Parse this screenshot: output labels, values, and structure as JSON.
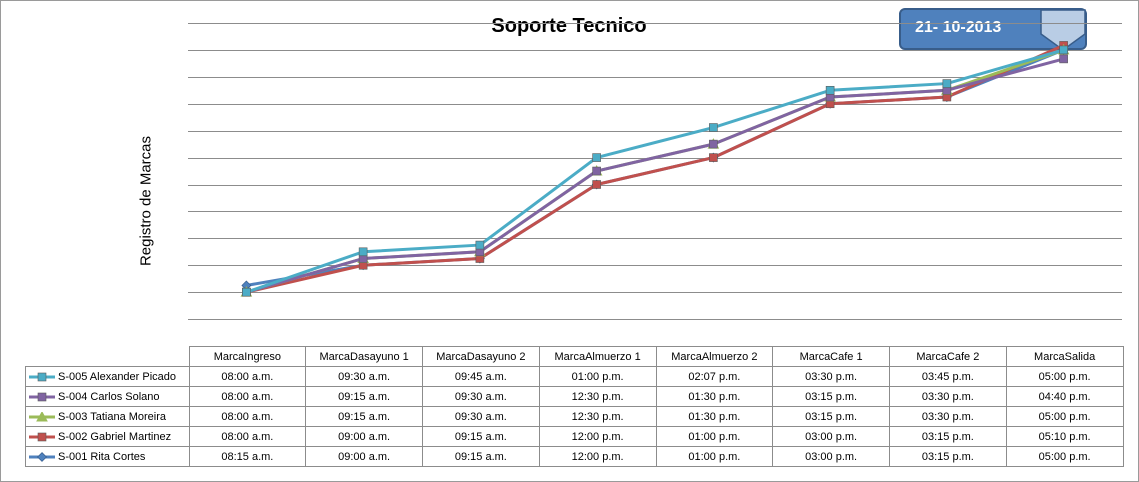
{
  "date_label": "21- 10-2013",
  "chart_data": {
    "type": "line",
    "title": "Soporte Tecnico",
    "ylabel": "Registro de Marcas",
    "xlabel": "",
    "ylim": [
      "06:00",
      "18:00"
    ],
    "grid": true,
    "legend": "data-table",
    "categories": [
      "MarcaIngreso",
      "MarcaDasayuno 1",
      "MarcaDasayuno 2",
      "MarcaAlmuerzo 1",
      "MarcaAlmuerzo 2",
      "MarcaCafe 1",
      "MarcaCafe 2",
      "MarcaSalida"
    ],
    "series": [
      {
        "name": "S-005 Alexander Picado",
        "color": "#4bacc6",
        "marker": "square",
        "values": [
          "08:00 a.m.",
          "09:30 a.m.",
          "09:45 a.m.",
          "01:00 p.m.",
          "02:07 p.m.",
          "03:30 p.m.",
          "03:45 p.m.",
          "05:00 p.m."
        ]
      },
      {
        "name": "S-004 Carlos Solano",
        "color": "#8064a2",
        "marker": "square",
        "values": [
          "08:00 a.m.",
          "09:15 a.m.",
          "09:30 a.m.",
          "12:30 p.m.",
          "01:30 p.m.",
          "03:15 p.m.",
          "03:30 p.m.",
          "04:40 p.m."
        ]
      },
      {
        "name": "S-003 Tatiana  Moreira",
        "color": "#9bbb59",
        "marker": "triangle",
        "values": [
          "08:00 a.m.",
          "09:15 a.m.",
          "09:30 a.m.",
          "12:30 p.m.",
          "01:30 p.m.",
          "03:15 p.m.",
          "03:30 p.m.",
          "05:00 p.m."
        ]
      },
      {
        "name": "S-002 Gabriel Martinez",
        "color": "#c0504d",
        "marker": "square",
        "values": [
          "08:00 a.m.",
          "09:00 a.m.",
          "09:15 a.m.",
          "12:00 p.m.",
          "01:00 p.m.",
          "03:00 p.m.",
          "03:15 p.m.",
          "05:10 p.m."
        ]
      },
      {
        "name": "S-001 Rita Cortes",
        "color": "#4f81bd",
        "marker": "diamond",
        "values": [
          "08:15 a.m.",
          "09:00 a.m.",
          "09:15 a.m.",
          "12:00 p.m.",
          "01:00 p.m.",
          "03:00 p.m.",
          "03:15 p.m.",
          "05:00 p.m."
        ]
      }
    ]
  }
}
